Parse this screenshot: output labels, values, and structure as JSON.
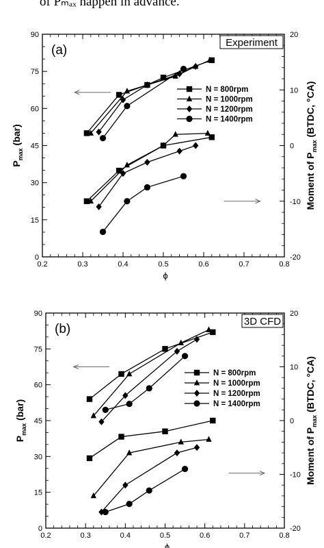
{
  "caption_fragment": "of Pₘₐₓ happen in advance.",
  "chart_data": [
    {
      "type": "line",
      "panel_label": "(a)",
      "box_label": "Experiment",
      "xlabel": "ϕ",
      "ylabel_left": "P",
      "ylabel_left_sub": "max",
      "ylabel_left_unit": "(bar)",
      "ylabel_right": "Moment of P",
      "ylabel_right_sub": "max",
      "ylabel_right_unit": "(BTDC, °CA)",
      "xlim": [
        0.2,
        0.8
      ],
      "ylim_left": [
        0,
        90
      ],
      "ylim_right": [
        -20,
        20
      ],
      "xticks": [
        "0.2",
        "0.3",
        "0.4",
        "0.5",
        "0.6",
        "0.7",
        "0.8"
      ],
      "yticks_left": [
        "0",
        "15",
        "30",
        "45",
        "60",
        "75",
        "90"
      ],
      "yticks_right": [
        "-20",
        "-10",
        "0",
        "10",
        "20"
      ],
      "legend_position": "upper-right",
      "series": [
        {
          "name": "N = 800rpm",
          "marker": "square",
          "pmax": {
            "x": [
              0.31,
              0.39,
              0.46,
              0.5,
              0.62
            ],
            "y": [
              50,
              65.5,
              69.5,
              72.5,
              79.5
            ]
          },
          "moment": {
            "x": [
              0.31,
              0.39,
              0.5,
              0.62
            ],
            "y": [
              -10,
              -4.5,
              0,
              1.5
            ]
          }
        },
        {
          "name": "N = 1000rpm",
          "marker": "triangle",
          "pmax": {
            "x": [
              0.32,
              0.41,
              0.46,
              0.53,
              0.58,
              0.615
            ],
            "y": [
              50,
              67,
              69.5,
              73,
              77,
              79.5
            ]
          },
          "moment": {
            "x": [
              0.32,
              0.41,
              0.5,
              0.53,
              0.61
            ],
            "y": [
              -10,
              -3.5,
              0,
              2,
              2.2
            ]
          }
        },
        {
          "name": "N = 1200rpm",
          "marker": "diamond",
          "pmax": {
            "x": [
              0.34,
              0.4,
              0.46,
              0.54,
              0.58
            ],
            "y": [
              50.5,
              63.5,
              69.5,
              74,
              77
            ]
          },
          "moment": {
            "x": [
              0.34,
              0.4,
              0.46,
              0.54,
              0.58
            ],
            "y": [
              -11,
              -5,
              -3,
              -1,
              0
            ]
          }
        },
        {
          "name": "N = 1400rpm",
          "marker": "circle",
          "pmax": {
            "x": [
              0.35,
              0.41,
              0.55
            ],
            "y": [
              48,
              61,
              76
            ]
          },
          "moment": {
            "x": [
              0.35,
              0.41,
              0.46,
              0.55
            ],
            "y": [
              -15.5,
              -10,
              -7.5,
              -5.5
            ]
          }
        }
      ],
      "annotations": {
        "left_arrow": {
          "from": [
            0.37,
            66.5
          ],
          "to": [
            0.28,
            66.5
          ]
        },
        "right_arrow": {
          "from": [
            0.65,
            22.5
          ],
          "to": [
            0.74,
            22.5
          ]
        }
      }
    },
    {
      "type": "line",
      "panel_label": "(b)",
      "box_label": "3D CFD",
      "xlabel": "ϕ",
      "ylabel_left": "P",
      "ylabel_left_sub": "max",
      "ylabel_left_unit": "(bar)",
      "ylabel_right": "Moment of P",
      "ylabel_right_sub": "max",
      "ylabel_right_unit": "(BTDC, °CA)",
      "xlim": [
        0.2,
        0.8
      ],
      "ylim_left": [
        0,
        90
      ],
      "ylim_right": [
        -20,
        20
      ],
      "xticks": [
        "0.2",
        "0.3",
        "0.4",
        "0.5",
        "0.6",
        "0.7",
        "0.8"
      ],
      "yticks_left": [
        "0",
        "15",
        "30",
        "45",
        "60",
        "75",
        "90"
      ],
      "yticks_right": [
        "-20",
        "-10",
        "0",
        "10",
        "20"
      ],
      "legend_position": "right",
      "series": [
        {
          "name": "N = 800rpm",
          "marker": "square",
          "pmax": {
            "x": [
              0.31,
              0.39,
              0.5,
              0.62
            ],
            "y": [
              54,
              64.5,
              75,
              82
            ]
          },
          "moment": {
            "x": [
              0.31,
              0.39,
              0.5,
              0.62
            ],
            "y": [
              -7,
              -3,
              -2,
              0
            ]
          }
        },
        {
          "name": "N = 1000rpm",
          "marker": "triangle",
          "pmax": {
            "x": [
              0.32,
              0.41,
              0.54,
              0.61
            ],
            "y": [
              47,
              64.5,
              77.5,
              83
            ]
          },
          "moment": {
            "x": [
              0.32,
              0.41,
              0.54,
              0.61
            ],
            "y": [
              -14,
              -6,
              -4,
              -3.5
            ]
          }
        },
        {
          "name": "N = 1200rpm",
          "marker": "diamond",
          "pmax": {
            "x": [
              0.34,
              0.4,
              0.53,
              0.58
            ],
            "y": [
              44.5,
              55.5,
              74,
              79
            ]
          },
          "moment": {
            "x": [
              0.34,
              0.4,
              0.53,
              0.58
            ],
            "y": [
              -17,
              -12,
              -6,
              -5
            ]
          }
        },
        {
          "name": "N = 1400rpm",
          "marker": "circle",
          "pmax": {
            "x": [
              0.35,
              0.41,
              0.46,
              0.55
            ],
            "y": [
              49.5,
              52,
              58.5,
              72
            ]
          },
          "moment": {
            "x": [
              0.35,
              0.41,
              0.46,
              0.55
            ],
            "y": [
              -17,
              -15.5,
              -13,
              -9
            ]
          }
        }
      ],
      "annotations": {
        "left_arrow": {
          "from": [
            0.36,
            67.5
          ],
          "to": [
            0.27,
            67.5
          ]
        },
        "right_arrow": {
          "from": [
            0.66,
            23
          ],
          "to": [
            0.75,
            23
          ]
        }
      }
    }
  ]
}
